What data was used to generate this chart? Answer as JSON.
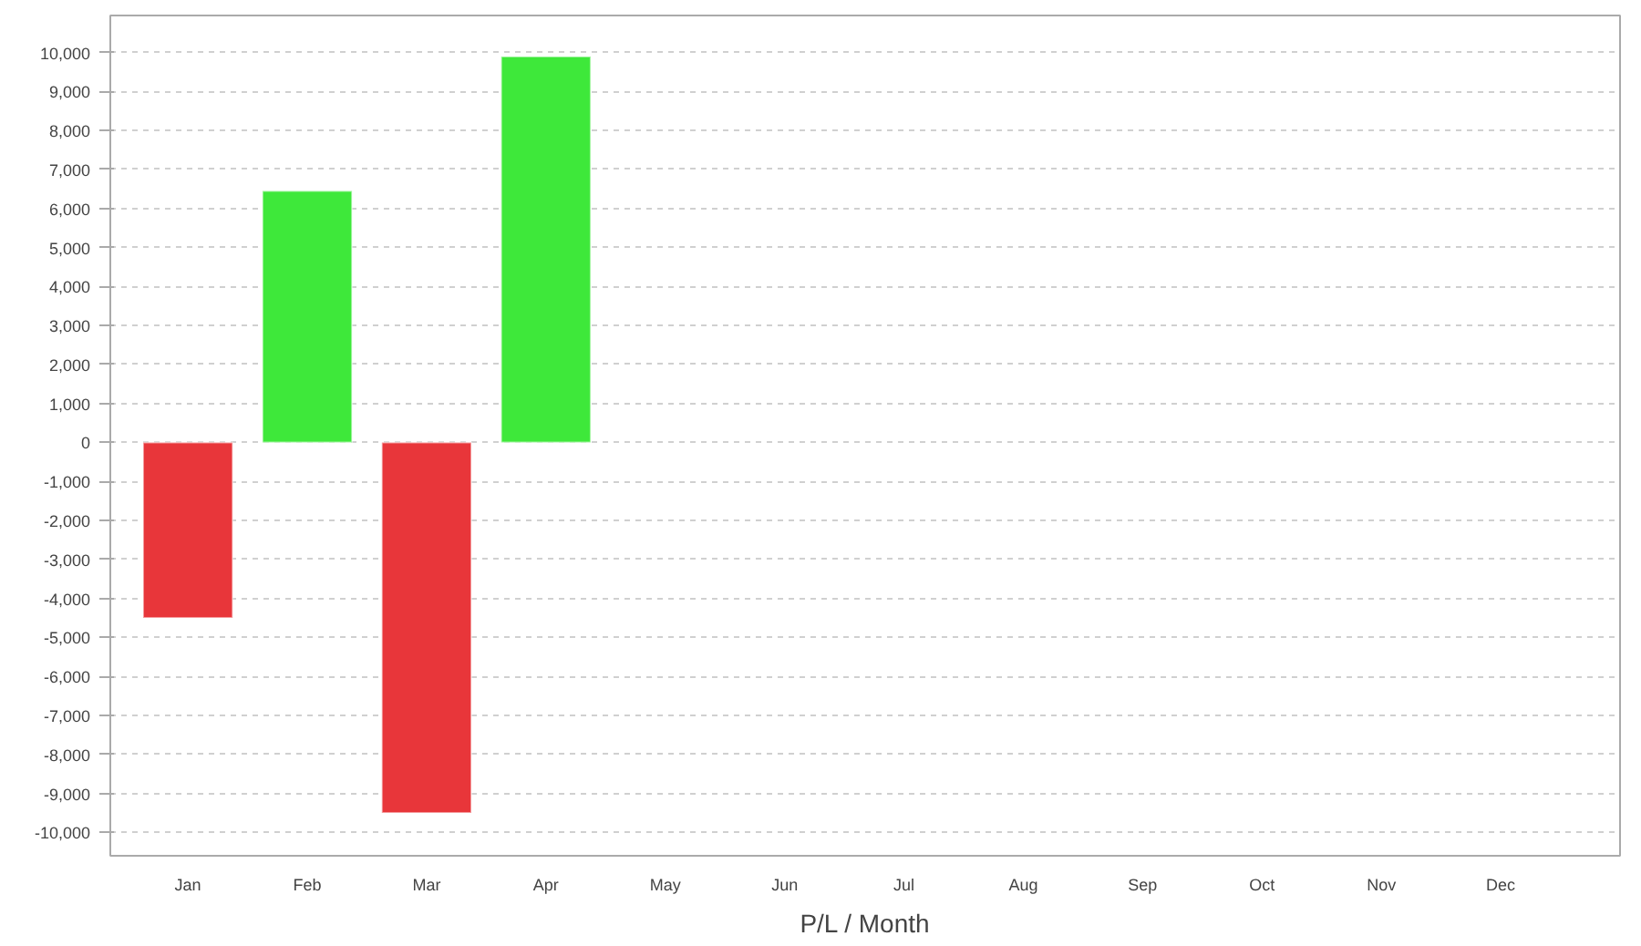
{
  "chart_data": {
    "type": "bar",
    "xlabel": "P/L / Month",
    "categories": [
      "Jan",
      "Feb",
      "Mar",
      "Apr",
      "May",
      "Jun",
      "Jul",
      "Aug",
      "Sep",
      "Oct",
      "Nov",
      "Dec"
    ],
    "values": [
      -4500,
      6450,
      -9500,
      9900,
      null,
      null,
      null,
      null,
      null,
      null,
      null,
      null
    ],
    "colors": [
      "#e8363a",
      "#3ee83a",
      "#e8363a",
      "#3ee83a",
      null,
      null,
      null,
      null,
      null,
      null,
      null,
      null
    ],
    "ylim": [
      -10600,
      10950
    ],
    "yticks": [
      {
        "value": -10000,
        "label": "-10,000"
      },
      {
        "value": -9000,
        "label": "-9,000"
      },
      {
        "value": -8000,
        "label": "-8,000"
      },
      {
        "value": -7000,
        "label": "-7,000"
      },
      {
        "value": -6000,
        "label": "-6,000"
      },
      {
        "value": -5000,
        "label": "-5,000"
      },
      {
        "value": -4000,
        "label": "-4,000"
      },
      {
        "value": -3000,
        "label": "-3,000"
      },
      {
        "value": -2000,
        "label": "-2,000"
      },
      {
        "value": -1000,
        "label": "-1,000"
      },
      0,
      {
        "value": 1000,
        "label": "1,000"
      },
      {
        "value": 2000,
        "label": "2,000"
      },
      {
        "value": 3000,
        "label": "3,000"
      },
      {
        "value": 4000,
        "label": "4,000"
      },
      {
        "value": 5000,
        "label": "5,000"
      },
      {
        "value": 6000,
        "label": "6,000"
      },
      {
        "value": 7000,
        "label": "7,000"
      },
      {
        "value": 8000,
        "label": "8,000"
      },
      {
        "value": 9000,
        "label": "9,000"
      },
      {
        "value": 10000,
        "label": "10,000"
      }
    ],
    "grid": "y"
  }
}
